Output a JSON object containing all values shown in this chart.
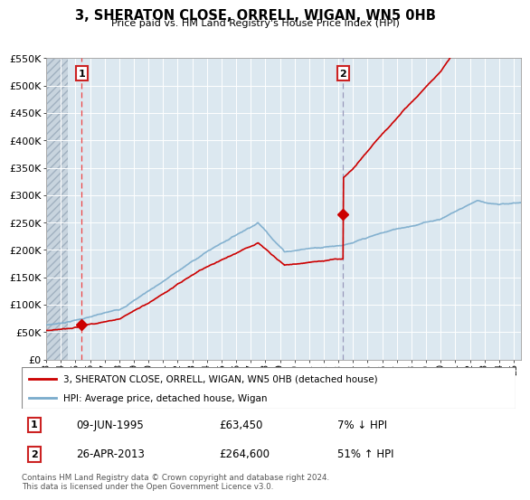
{
  "title": "3, SHERATON CLOSE, ORRELL, WIGAN, WN5 0HB",
  "subtitle": "Price paid vs. HM Land Registry's House Price Index (HPI)",
  "ylim": [
    0,
    550000
  ],
  "yticks": [
    0,
    50000,
    100000,
    150000,
    200000,
    250000,
    300000,
    350000,
    400000,
    450000,
    500000,
    550000
  ],
  "ytick_labels": [
    "£0",
    "£50K",
    "£100K",
    "£150K",
    "£200K",
    "£250K",
    "£300K",
    "£350K",
    "£400K",
    "£450K",
    "£500K",
    "£550K"
  ],
  "sale1_year": 1995.44,
  "sale1_price": 63450,
  "sale1_label": "1",
  "sale1_info": "09-JUN-1995",
  "sale1_amount": "£63,450",
  "sale1_hpi": "7% ↓ HPI",
  "sale2_year": 2013.32,
  "sale2_price": 264600,
  "sale2_label": "2",
  "sale2_info": "26-APR-2013",
  "sale2_amount": "£264,600",
  "sale2_hpi": "51% ↑ HPI",
  "line_red": "#cc0000",
  "line_blue": "#7aabcc",
  "bg_plain": "#dce8f0",
  "bg_hatch": "#c8d4de",
  "grid_color": "#ffffff",
  "vline1_color": "#ee4444",
  "vline2_color": "#9999bb",
  "legend1_label": "3, SHERATON CLOSE, ORRELL, WIGAN, WN5 0HB (detached house)",
  "legend2_label": "HPI: Average price, detached house, Wigan",
  "footer": "Contains HM Land Registry data © Crown copyright and database right 2024.\nThis data is licensed under the Open Government Licence v3.0.",
  "xlim_start": 1993.0,
  "xlim_end": 2025.5,
  "xticks": [
    1993,
    1994,
    1995,
    1996,
    1997,
    1998,
    1999,
    2000,
    2001,
    2002,
    2003,
    2004,
    2005,
    2006,
    2007,
    2008,
    2009,
    2010,
    2011,
    2012,
    2013,
    2014,
    2015,
    2016,
    2017,
    2018,
    2019,
    2020,
    2021,
    2022,
    2023,
    2024,
    2025
  ],
  "xtick_labels": [
    "93",
    "94",
    "95",
    "96",
    "97",
    "98",
    "99",
    "00",
    "01",
    "02",
    "03",
    "04",
    "05",
    "06",
    "07",
    "08",
    "09",
    "10",
    "11",
    "12",
    "13",
    "14",
    "15",
    "16",
    "17",
    "18",
    "19",
    "20",
    "21",
    "22",
    "23",
    "24",
    "25"
  ]
}
